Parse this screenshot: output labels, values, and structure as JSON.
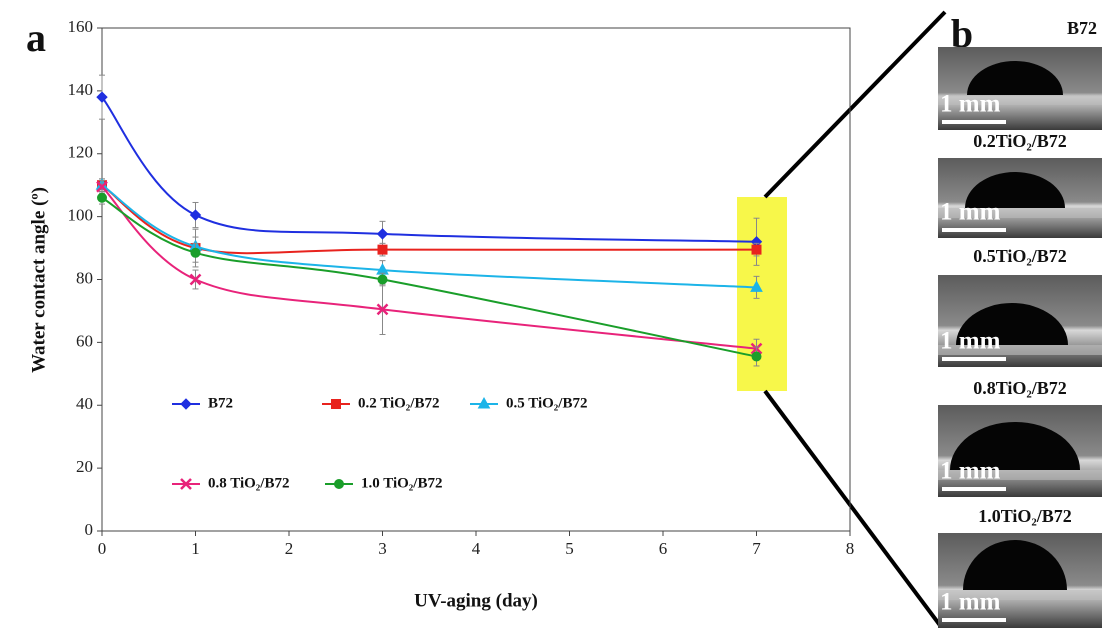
{
  "chart_data": {
    "type": "line",
    "panel_label": "a",
    "x_label": "UV-aging (day)",
    "y_label": "Water contact angle (º)",
    "x": [
      0,
      1,
      3,
      7
    ],
    "xlim": [
      0,
      8
    ],
    "xticks": [
      0,
      1,
      2,
      3,
      4,
      5,
      6,
      7,
      8
    ],
    "ylim": [
      0,
      160
    ],
    "yticks": [
      0,
      20,
      40,
      60,
      80,
      100,
      120,
      140,
      160
    ],
    "highlight_color": "#f7f74a",
    "series": [
      {
        "name": "B72",
        "color": "#1f2fe0",
        "marker": "diamond",
        "values": [
          138,
          100.5,
          94.5,
          92
        ],
        "errors": [
          7,
          4,
          4,
          7.5
        ]
      },
      {
        "name": "0.2 TiO₂/B72",
        "color": "#e8231e",
        "marker": "square",
        "values": [
          110,
          90,
          89.5,
          89.5
        ],
        "errors": [
          2,
          6,
          2,
          2
        ]
      },
      {
        "name": "0.5 TiO₂/B72",
        "color": "#1cb4e8",
        "marker": "triangle",
        "values": [
          110,
          90.5,
          83,
          77.5
        ],
        "errors": [
          2,
          3,
          3,
          3.5
        ]
      },
      {
        "name": "0.8 TiO₂/B72",
        "color": "#e8237a",
        "marker": "x",
        "values": [
          109.5,
          80,
          70.5,
          58
        ],
        "errors": [
          2,
          3,
          8,
          3
        ]
      },
      {
        "name": "1.0 TiO₂/B72",
        "color": "#1a9e2a",
        "marker": "circle",
        "values": [
          106,
          88.5,
          80,
          55.5
        ],
        "errors": [
          2,
          3,
          2,
          3
        ]
      }
    ]
  },
  "panel_b": {
    "label": "b",
    "images": [
      {
        "label": "B72",
        "scale": "1 mm"
      },
      {
        "label": "0.2TiO₂/B72",
        "scale": "1 mm"
      },
      {
        "label": "0.5TiO₂/B72",
        "scale": "1 mm"
      },
      {
        "label": "0.8TiO₂/B72",
        "scale": "1 mm"
      },
      {
        "label": "1.0TiO₂/B72",
        "scale": "1 mm"
      }
    ]
  }
}
